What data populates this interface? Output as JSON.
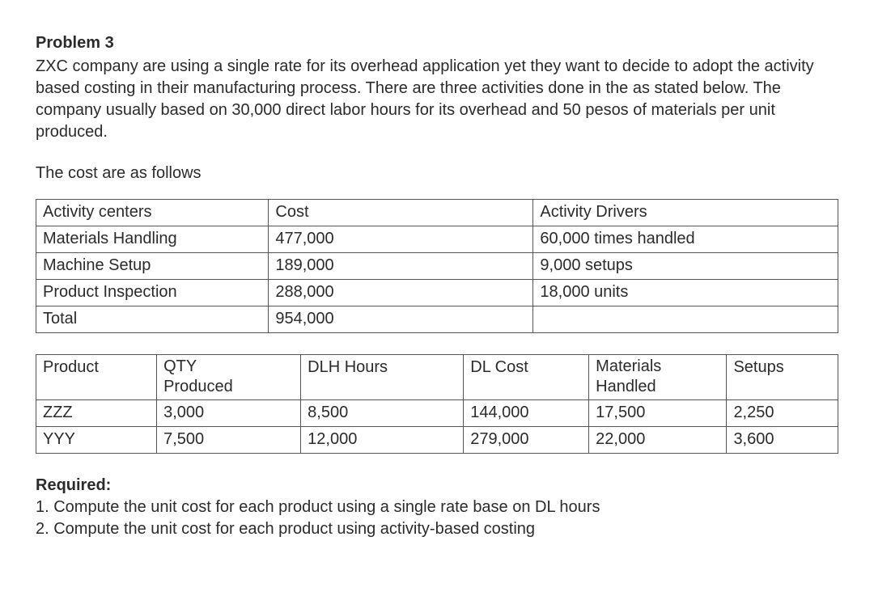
{
  "problem_title": "Problem 3",
  "intro_text": "ZXC company are using a single rate for its overhead application yet they want to decide to adopt the activity based costing in their manufacturing process. There are three activities done in the as stated below. The company usually based on 30,000 direct labor hours for its overhead and 50 pesos of materials per unit produced.",
  "cost_intro": "The cost are as follows",
  "activity_table": {
    "header": {
      "col0": "Activity centers",
      "col1": "Cost",
      "col2": "Activity Drivers"
    },
    "rows": [
      {
        "col0": "Materials Handling",
        "col1": "477,000",
        "col2": "60,000 times handled"
      },
      {
        "col0": "Machine Setup",
        "col1": "189,000",
        "col2": "9,000 setups"
      },
      {
        "col0": "Product Inspection",
        "col1": "288,000",
        "col2": "18,000 units"
      },
      {
        "col0": "Total",
        "col1": "954,000",
        "col2": ""
      }
    ]
  },
  "product_table": {
    "header": {
      "col0": "Product",
      "col1_line1": "QTY",
      "col1_line2": "Produced",
      "col2": "DLH Hours",
      "col3": "DL Cost",
      "col4_line1": "Materials",
      "col4_line2": "Handled",
      "col5": "Setups"
    },
    "rows": [
      {
        "col0": "ZZZ",
        "col1": "3,000",
        "col2": "8,500",
        "col3": "144,000",
        "col4": "17,500",
        "col5": "2,250"
      },
      {
        "col0": "YYY",
        "col1": "7,500",
        "col2": "12,000",
        "col3": "279,000",
        "col4": "22,000",
        "col5": "3,600"
      }
    ]
  },
  "required_label": "Required:",
  "requirements": {
    "r1": "1. Compute the unit cost for each product using a single rate base on DL hours",
    "r2": "2. Compute the unit cost for each product using activity-based costing"
  }
}
